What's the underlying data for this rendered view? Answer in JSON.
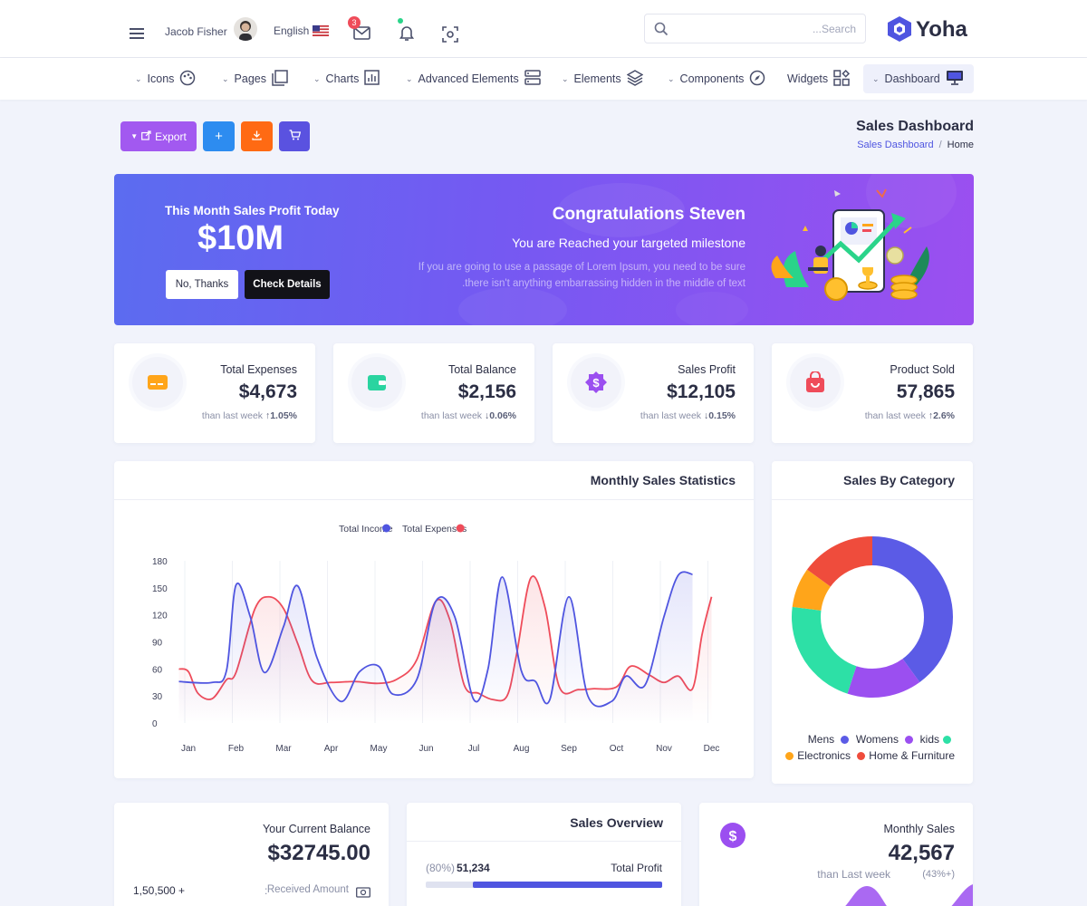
{
  "header": {
    "user_name": "Jacob Fisher",
    "language": "English",
    "mail_badge": "3",
    "search_placeholder": "...Search",
    "brand": "Yoha"
  },
  "nav": {
    "items": [
      {
        "label": "Icons",
        "icon": "palette-icon"
      },
      {
        "label": "Pages",
        "icon": "pages-icon"
      },
      {
        "label": "Charts",
        "icon": "bar-chart-icon"
      },
      {
        "label": "Advanced Elements",
        "icon": "server-icon"
      },
      {
        "label": "Elements",
        "icon": "layers-icon"
      },
      {
        "label": "Components",
        "icon": "compass-icon"
      },
      {
        "label": "Widgets",
        "icon": "widgets-icon"
      },
      {
        "label": "Dashboard",
        "icon": "monitor-icon"
      }
    ]
  },
  "toolbar": {
    "export_label": "Export",
    "colors": {
      "export": "#a259f0",
      "add": "#2d8cf0",
      "download": "#ff6a13",
      "cart": "#5a52e0"
    }
  },
  "page": {
    "title": "Sales Dashboard",
    "breadcrumb": [
      "Sales Dashboard",
      "Home"
    ]
  },
  "banner": {
    "subtitle": "This Month Sales Profit Today",
    "amount": "$10M",
    "btn_no": "No, Thanks",
    "btn_check": "Check Details",
    "heading": "Congratulations Steven",
    "subheading": "You are Reached your targeted milestone",
    "text_line1": "If you are going to use a passage of Lorem Ipsum, you need to be sure",
    "text_line2": ".there isn't anything embarrassing hidden in the middle of text"
  },
  "stats": [
    {
      "title": "Total Expenses",
      "value": "$4,673",
      "sub": "than last week",
      "change": "1.05%",
      "dir": "up",
      "icon": "credit-card-icon",
      "color": "#ffa51a"
    },
    {
      "title": "Total Balance",
      "value": "$2,156",
      "sub": "than last week",
      "change": "0.06%",
      "dir": "down",
      "icon": "wallet-icon",
      "color": "#2ad4a0"
    },
    {
      "title": "Sales Profit",
      "value": "$12,105",
      "sub": "than last week",
      "change": "0.15%",
      "dir": "down",
      "icon": "dollar-badge-icon",
      "color": "#9b4ff0"
    },
    {
      "title": "Product Sold",
      "value": "57,865",
      "sub": "than last week",
      "change": "2.6%",
      "dir": "up",
      "icon": "shopping-bag-icon",
      "color": "#ef4c5a"
    }
  ],
  "monthly_chart": {
    "title": "Monthly Sales Statistics",
    "chart_data": {
      "type": "line",
      "x": [
        "Jan",
        "Feb",
        "Mar",
        "Apr",
        "May",
        "Jun",
        "Jul",
        "Aug",
        "Sep",
        "Oct",
        "Nov",
        "Dec"
      ],
      "ylim": [
        0,
        180
      ],
      "yticks": [
        0,
        30,
        60,
        90,
        120,
        150,
        180
      ],
      "legend_position": "top",
      "series": [
        {
          "name": "Total Income",
          "color": "#4f55e0",
          "x": [
            -0.2,
            0.5,
            0.8,
            1.0,
            1.3,
            1.6,
            2.0,
            2.3,
            2.7,
            3.2,
            3.6,
            4.0,
            4.3,
            4.8,
            5.2,
            5.6,
            6.0,
            6.3,
            6.6,
            7.0,
            7.3,
            7.6,
            8.0,
            8.4,
            8.9,
            9.2,
            9.6,
            10.0,
            10.3,
            10.6
          ],
          "values": [
            46,
            45,
            58,
            153,
            118,
            56,
            107,
            152,
            73,
            24,
            57,
            63,
            32,
            48,
            135,
            118,
            26,
            60,
            162,
            58,
            46,
            26,
            140,
            30,
            24,
            52,
            42,
            118,
            164,
            165
          ]
        },
        {
          "name": "Total Expenses",
          "color": "#ef4c5a",
          "x": [
            -0.2,
            0.0,
            0.2,
            0.5,
            0.8,
            1.0,
            1.4,
            1.7,
            2.0,
            2.3,
            2.6,
            3.0,
            3.5,
            4.0,
            4.4,
            4.8,
            5.2,
            5.5,
            5.8,
            6.1,
            6.4,
            6.7,
            6.9,
            7.2,
            7.5,
            7.8,
            8.2,
            8.5,
            9.0,
            9.3,
            9.7,
            10.0,
            10.3,
            10.6,
            10.8,
            11.0
          ],
          "values": [
            60,
            57,
            33,
            27,
            48,
            56,
            127,
            140,
            127,
            88,
            47,
            45,
            46,
            44,
            49,
            70,
            135,
            114,
            42,
            33,
            26,
            30,
            76,
            161,
            128,
            40,
            37,
            38,
            40,
            63,
            53,
            45,
            52,
            38,
            98,
            140
          ]
        }
      ]
    }
  },
  "category_chart": {
    "title": "Sales By Category",
    "chart_data": {
      "type": "pie",
      "donut": true,
      "legend_position": "bottom",
      "categories": [
        "Mens",
        "Womens",
        "kids",
        "Electronics",
        "Home & Furniture"
      ],
      "values": [
        40,
        15,
        22,
        8,
        15
      ],
      "colors": [
        "#5b5be6",
        "#9b4ff0",
        "#2de0a6",
        "#ffa51a",
        "#ef4c3c"
      ]
    }
  },
  "balance_card": {
    "title": "Your Current Balance",
    "value": "$32745.00",
    "left_value": "1,50,500 +",
    "received_label": "Received Amount",
    "separator": ":"
  },
  "overview_card": {
    "title": "Sales Overview",
    "percent": "(80%)",
    "value": "51,234",
    "label": "Total Profit",
    "progress": 0.8
  },
  "monthly_sales_card": {
    "title": "Monthly Sales",
    "value": "42,567",
    "sub": "than Last week",
    "change": "(43%+)"
  }
}
